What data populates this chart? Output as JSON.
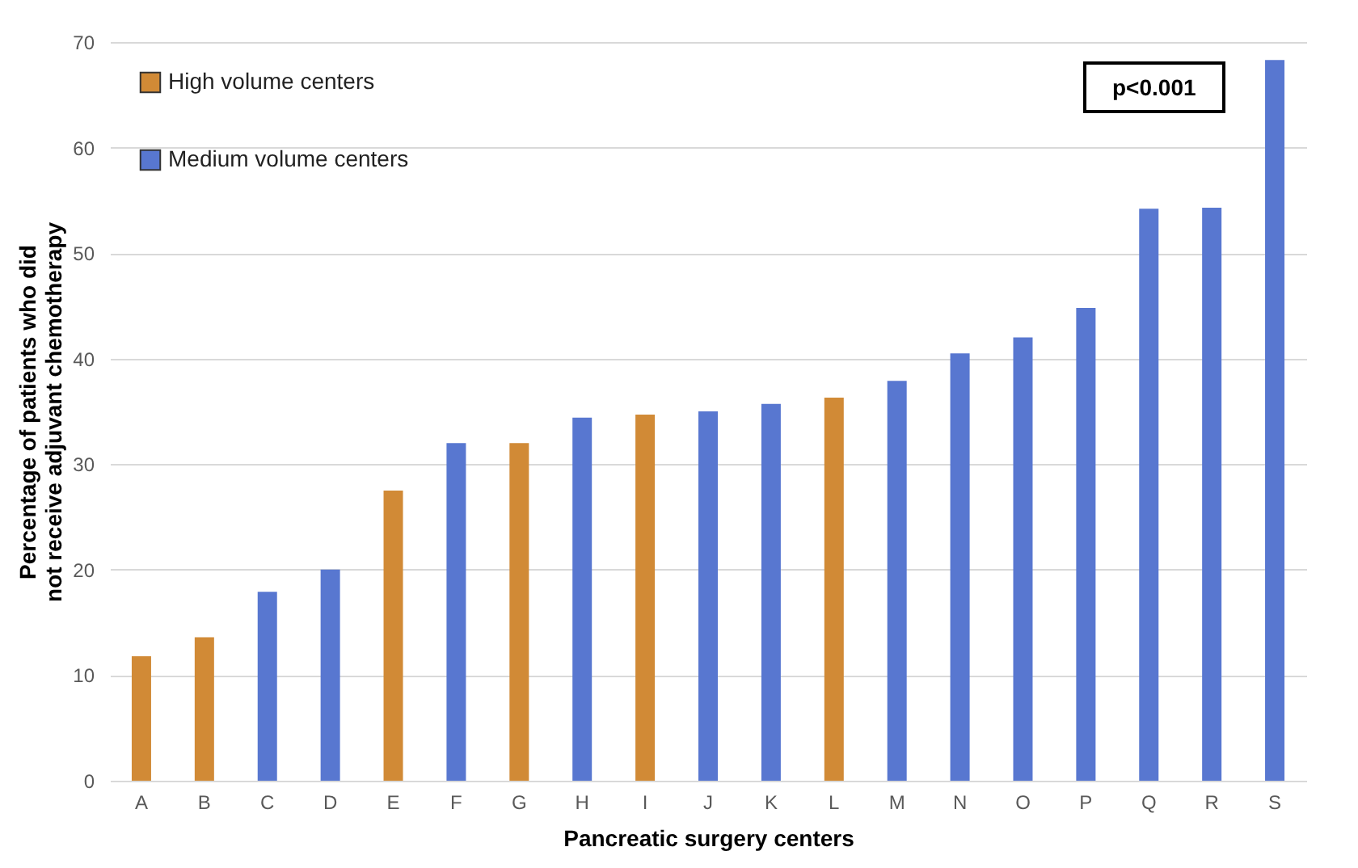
{
  "chart_data": {
    "type": "bar",
    "xlabel": "Pancreatic surgery centers",
    "ylabel": "Percentage of patients who did not receive adjuvant chemotherapy",
    "categories": [
      "A",
      "B",
      "C",
      "D",
      "E",
      "F",
      "G",
      "H",
      "I",
      "J",
      "K",
      "L",
      "M",
      "N",
      "O",
      "P",
      "Q",
      "R",
      "S"
    ],
    "series": [
      {
        "name": "High volume centers",
        "color": "#d18a36",
        "values": [
          11.8,
          13.6,
          null,
          null,
          27.5,
          null,
          32,
          null,
          34.7,
          null,
          null,
          36.3,
          null,
          null,
          null,
          null,
          null,
          null,
          null
        ]
      },
      {
        "name": "Medium volume centers",
        "color": "#5877d0",
        "values": [
          null,
          null,
          17.9,
          20,
          null,
          32,
          null,
          34.4,
          null,
          35,
          35.7,
          null,
          37.9,
          40.5,
          42,
          44.8,
          54.2,
          54.3,
          68.3
        ]
      }
    ],
    "ylim": [
      0,
      70
    ],
    "yticks": [
      0,
      10,
      20,
      30,
      40,
      50,
      60,
      70
    ],
    "grid": "y",
    "legend": "top left",
    "annotations": [
      "p<0.001"
    ]
  }
}
